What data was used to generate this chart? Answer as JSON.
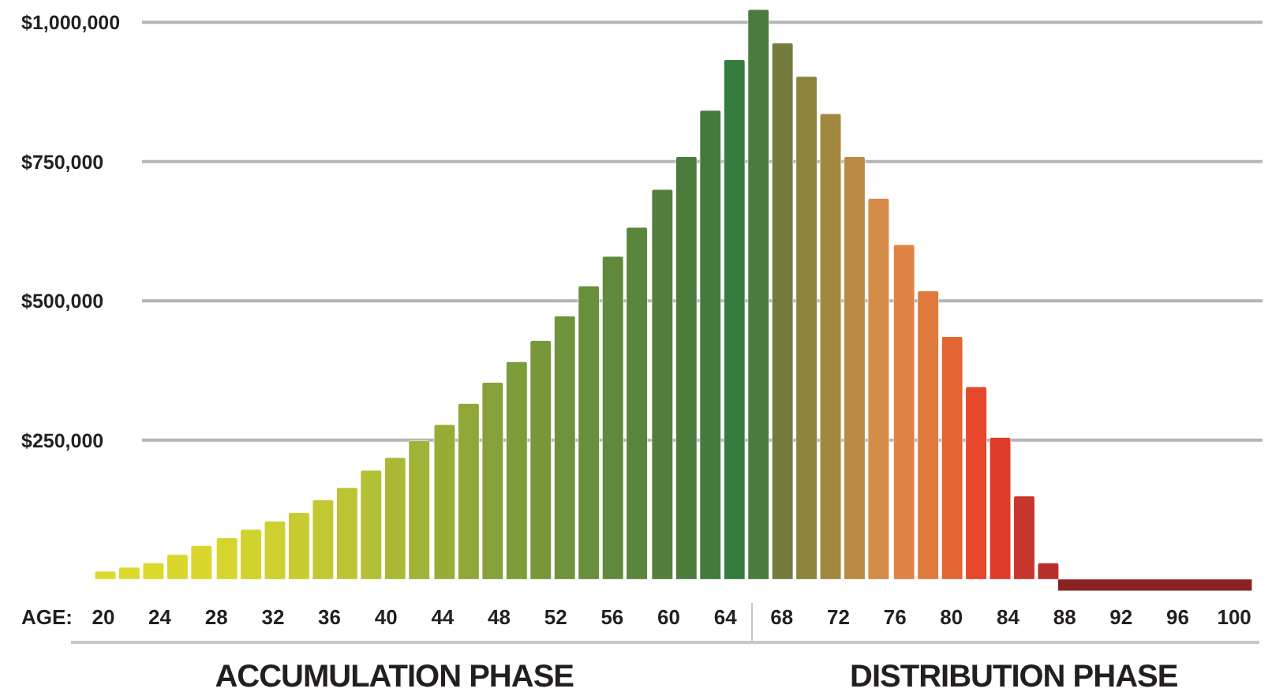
{
  "chart_data": {
    "type": "bar",
    "xlabel": "AGE:",
    "series": [
      {
        "x": [
          20.2,
          21.9,
          23.6,
          25.3,
          27.0,
          28.8,
          30.5,
          32.2,
          33.9,
          35.6,
          37.3,
          39.0,
          40.7,
          42.4,
          44.2,
          45.9,
          47.6,
          49.3,
          51.0,
          52.7,
          54.4,
          56.1,
          57.8,
          59.6,
          61.3,
          63.0,
          64.7,
          66.4,
          68.1,
          69.8,
          71.5,
          73.2,
          74.9,
          76.7,
          78.4,
          80.1,
          81.8,
          83.5,
          85.2,
          86.9
        ],
        "values": [
          15000,
          22000,
          30000,
          45000,
          61000,
          75000,
          90000,
          105000,
          120000,
          143000,
          165000,
          196000,
          219000,
          249000,
          278000,
          316000,
          354000,
          391000,
          429000,
          473000,
          527000,
          580000,
          632000,
          700000,
          759000,
          842000,
          933000,
          1023000,
          963000,
          903000,
          836000,
          759000,
          684000,
          601000,
          518000,
          436000,
          346000,
          255000,
          150000,
          30000
        ],
        "colors": [
          "#dcd92c",
          "#dcd92c",
          "#dbd92c",
          "#dad82d",
          "#d9d62d",
          "#d6d52e",
          "#d2d22f",
          "#cfd030",
          "#c9cc31",
          "#c2c832",
          "#bbc433",
          "#b3bf34",
          "#aab935",
          "#a1b336",
          "#97ad37",
          "#8ea738",
          "#86a239",
          "#7d9c3a",
          "#76983b",
          "#6f933b",
          "#68903c",
          "#61893c",
          "#5a853c",
          "#52803c",
          "#4b7c3c",
          "#427b3c",
          "#367c3e",
          "#4a7d3d",
          "#737c3c",
          "#8c843d",
          "#a2873f",
          "#bb8a42",
          "#d48c48",
          "#e08444",
          "#e07b3d",
          "#e36532",
          "#e5482c",
          "#e03c2a",
          "#c8372d",
          "#b8302c"
        ]
      },
      {
        "type": "area",
        "x": [
          87.6,
          101.3
        ],
        "values": [
          -20000,
          -20000
        ],
        "color": "#8a2222"
      }
    ],
    "xlim": [
      19.0,
      101.5
    ],
    "xticks": [
      20,
      24,
      28,
      32,
      36,
      40,
      44,
      48,
      52,
      56,
      60,
      64,
      68,
      72,
      76,
      80,
      84,
      88,
      92,
      96,
      100
    ],
    "ylim": [
      -25000,
      1040000
    ],
    "yticks": [
      {
        "value": 250000,
        "label": "$250,000"
      },
      {
        "value": 500000,
        "label": "$500,000"
      },
      {
        "value": 750000,
        "label": "$750,000"
      },
      {
        "value": 1000000,
        "label": "$1,000,000"
      }
    ],
    "grid": "y",
    "legend": false,
    "annotations": [
      "ACCUMULATION PHASE",
      "DISTRIBUTION PHASE"
    ]
  }
}
